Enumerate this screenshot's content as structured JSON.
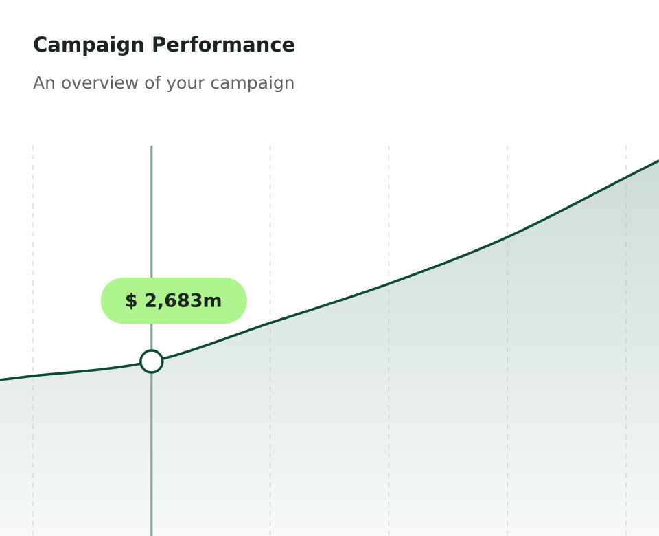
{
  "chart_data": {
    "type": "area",
    "title": "Campaign Performance",
    "subtitle": "An overview of your campaign",
    "categories": [
      null,
      null,
      null,
      null,
      null,
      null
    ],
    "values": [
      2461,
      2683,
      3275,
      3877,
      4595,
      5514
    ],
    "value_labels": [
      null,
      "$ 2,683m",
      null,
      null,
      null,
      null
    ],
    "highlight_index": 1,
    "color": "#0b4a33",
    "fill_color": "#9bb8ad",
    "highlight_color": "#7aa592",
    "label_color": "#aef58f",
    "ylim": [
      0,
      6000
    ],
    "grid": true
  }
}
